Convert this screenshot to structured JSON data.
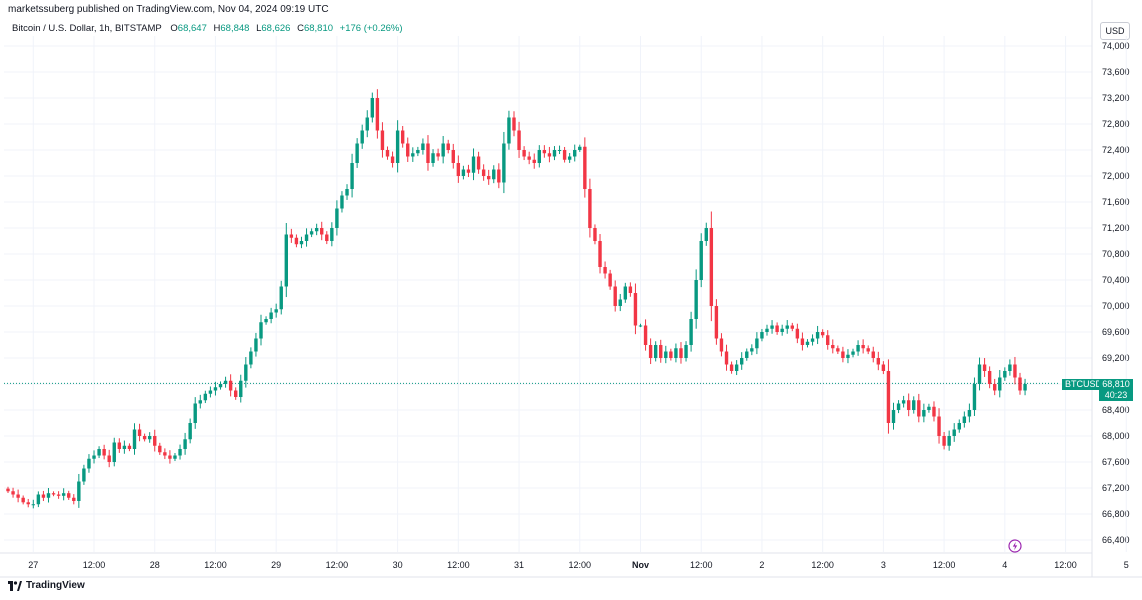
{
  "header": {
    "credit": "marketssuberg published on TradingView.com, Nov 04, 2024 09:19 UTC"
  },
  "legend": {
    "symbol": "Bitcoin / U.S. Dollar, 1h, BITSTAMP",
    "o_label": "O",
    "o_value": "68,647",
    "h_label": "H",
    "h_value": "68,848",
    "l_label": "L",
    "l_value": "68,626",
    "c_label": "C",
    "c_value": "68,810",
    "change": "+176 (+0.26%)"
  },
  "currency_button": "USD",
  "price_label": {
    "ticker": "BTCUSD",
    "price": "68,810",
    "countdown": "40:23"
  },
  "footer": {
    "brand": "TradingView"
  },
  "colors": {
    "up": "#089981",
    "down": "#f23645",
    "grid": "#f0f3fa",
    "axis_text": "#131722"
  },
  "chart_data": {
    "type": "candlestick",
    "symbol": "BTCUSD",
    "timeframe": "1h",
    "ylim": [
      66200,
      74000
    ],
    "y_ticks": [
      66400,
      66800,
      67200,
      67600,
      68000,
      68400,
      68800,
      69200,
      69600,
      70000,
      70400,
      70800,
      71200,
      71600,
      72000,
      72400,
      72800,
      73200,
      73600,
      74000
    ],
    "y_tick_labels": [
      "66,400",
      "66,800",
      "67,200",
      "67,600",
      "68,000",
      "68,400",
      "68,800",
      "69,200",
      "69,600",
      "70,000",
      "70,400",
      "70,800",
      "71,200",
      "71,600",
      "72,000",
      "72,400",
      "72,800",
      "73,200",
      "73,600",
      "74,000"
    ],
    "x_ticks": [
      {
        "label": "27",
        "bar": 5
      },
      {
        "label": "12:00",
        "bar": 17
      },
      {
        "label": "28",
        "bar": 29
      },
      {
        "label": "12:00",
        "bar": 41
      },
      {
        "label": "29",
        "bar": 53
      },
      {
        "label": "12:00",
        "bar": 65
      },
      {
        "label": "30",
        "bar": 77
      },
      {
        "label": "12:00",
        "bar": 89
      },
      {
        "label": "31",
        "bar": 101
      },
      {
        "label": "12:00",
        "bar": 113
      },
      {
        "label": "Nov",
        "bar": 125
      },
      {
        "label": "12:00",
        "bar": 137
      },
      {
        "label": "2",
        "bar": 149
      },
      {
        "label": "12:00",
        "bar": 161
      },
      {
        "label": "3",
        "bar": 173
      },
      {
        "label": "12:00",
        "bar": 185
      },
      {
        "label": "4",
        "bar": 197
      },
      {
        "label": "12:00",
        "bar": 209
      },
      {
        "label": "5",
        "bar": 221
      }
    ],
    "last_price": 68810,
    "closes": [
      67150,
      67100,
      67050,
      66980,
      66950,
      66950,
      67100,
      67050,
      67120,
      67100,
      67080,
      67120,
      67050,
      67000,
      67300,
      67500,
      67650,
      67700,
      67800,
      67700,
      67600,
      67900,
      67800,
      67850,
      67800,
      68100,
      68000,
      67950,
      68000,
      67850,
      67750,
      67700,
      67650,
      67700,
      67800,
      67950,
      68200,
      68500,
      68550,
      68650,
      68700,
      68750,
      68800,
      68850,
      68700,
      68600,
      68850,
      69100,
      69300,
      69500,
      69750,
      69800,
      69900,
      69950,
      70300,
      71100,
      71050,
      70950,
      71000,
      71100,
      71150,
      71200,
      71100,
      71000,
      71200,
      71500,
      71700,
      71800,
      72200,
      72500,
      72700,
      72900,
      73200,
      72700,
      72400,
      72300,
      72200,
      72700,
      72500,
      72300,
      72350,
      72400,
      72500,
      72200,
      72350,
      72300,
      72500,
      72400,
      72200,
      72000,
      72100,
      72050,
      72300,
      72100,
      72000,
      71950,
      72100,
      71900,
      72500,
      72900,
      72700,
      72400,
      72300,
      72250,
      72200,
      72400,
      72350,
      72300,
      72400,
      72400,
      72250,
      72300,
      72400,
      72450,
      71800,
      71200,
      71000,
      70600,
      70500,
      70300,
      70000,
      70100,
      70300,
      70200,
      69700,
      69700,
      69400,
      69200,
      69400,
      69200,
      69300,
      69200,
      69350,
      69200,
      69400,
      69800,
      70400,
      71000,
      71200,
      70000,
      69500,
      69300,
      69100,
      69000,
      69100,
      69200,
      69300,
      69350,
      69500,
      69600,
      69650,
      69700,
      69600,
      69650,
      69700,
      69650,
      69500,
      69400,
      69450,
      69500,
      69600,
      69550,
      69400,
      69350,
      69300,
      69200,
      69250,
      69300,
      69400,
      69350,
      69300,
      69200,
      69100,
      69000,
      68200,
      68400,
      68500,
      68550,
      68400,
      68550,
      68300,
      68400,
      68450,
      68300,
      68000,
      67850,
      68000,
      68100,
      68200,
      68300,
      68400,
      68800,
      69100,
      69000,
      68800,
      68700,
      68900,
      69000,
      69100,
      68900,
      68700,
      68800
    ],
    "annotation": "BTCUSD 68,810"
  }
}
